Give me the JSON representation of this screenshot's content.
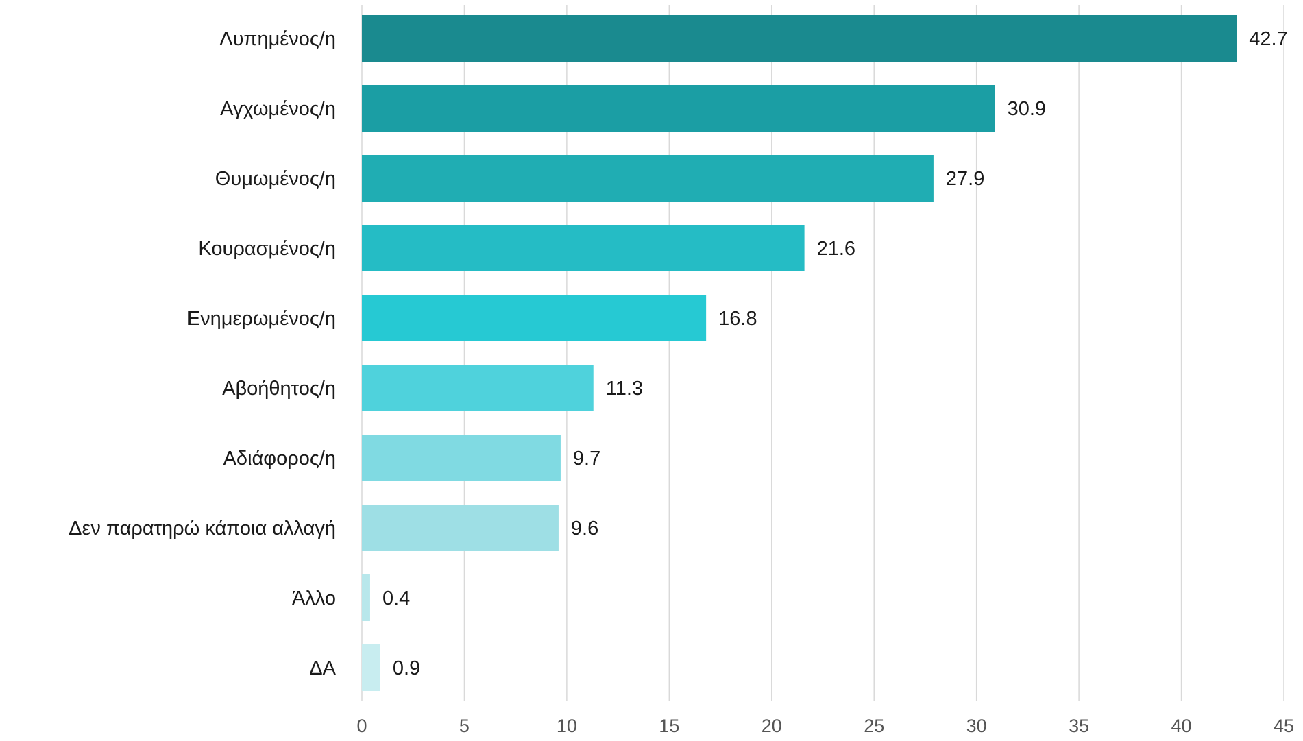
{
  "chart_data": {
    "type": "bar",
    "orientation": "horizontal",
    "title": "",
    "xlabel": "",
    "ylabel": "",
    "categories": [
      "Λυπημένος/η",
      "Αγχωμένος/η",
      "Θυμωμένος/η",
      "Κουρασμένος/η",
      "Ενημερωμένος/η",
      "Αβοήθητος/η",
      "Αδιάφορος/η",
      "Δεν παρατηρώ κάποια αλλαγή",
      "Άλλο",
      "ΔΑ"
    ],
    "values": [
      42.7,
      30.9,
      27.9,
      21.6,
      16.8,
      11.3,
      9.7,
      9.6,
      0.4,
      0.9
    ],
    "value_labels": [
      "42.7",
      "30.9",
      "27.9",
      "21.6",
      "16.8",
      "11.3",
      "9.7",
      "9.6",
      "0.4",
      "0.9"
    ],
    "colors": [
      "#1a8a8f",
      "#1b9ea4",
      "#20adb3",
      "#25bcc5",
      "#26c9d3",
      "#4fd2dc",
      "#80dae2",
      "#9edfe5",
      "#b8e7eb",
      "#c8edf0"
    ],
    "xlim": [
      0,
      45
    ],
    "xticks": [
      0,
      5,
      10,
      15,
      20,
      25,
      30,
      35,
      40,
      45
    ],
    "grid": true,
    "legend": "none"
  }
}
